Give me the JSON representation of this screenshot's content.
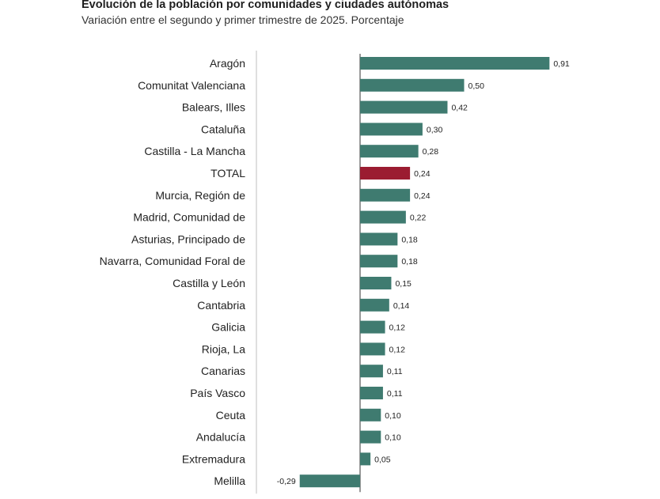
{
  "chart_data": {
    "type": "bar",
    "orientation": "horizontal",
    "title": "Evolución de la población por comunidades y ciudades autónomas",
    "subtitle": "Variación entre el segundo y primer trimestre de 2025. Porcentaje",
    "categories": [
      "Aragón",
      "Comunitat Valenciana",
      "Balears, Illes",
      "Cataluña",
      "Castilla - La Mancha",
      "TOTAL",
      "Murcia, Región de",
      "Madrid, Comunidad de",
      "Asturias, Principado de",
      "Navarra, Comunidad Foral de",
      "Castilla y León",
      "Cantabria",
      "Galicia",
      "Rioja, La",
      "Canarias",
      "País Vasco",
      "Ceuta",
      "Andalucía",
      "Extremadura",
      "Melilla"
    ],
    "values": [
      0.91,
      0.5,
      0.42,
      0.3,
      0.28,
      0.24,
      0.24,
      0.22,
      0.18,
      0.18,
      0.15,
      0.14,
      0.12,
      0.12,
      0.11,
      0.11,
      0.1,
      0.1,
      0.05,
      -0.29
    ],
    "value_labels": [
      "0,91",
      "0,50",
      "0,42",
      "0,30",
      "0,28",
      "0,24",
      "0,24",
      "0,22",
      "0,18",
      "0,18",
      "0,15",
      "0,14",
      "0,12",
      "0,12",
      "0,11",
      "0,11",
      "0,10",
      "0,10",
      "0,05",
      "-0,29"
    ],
    "highlight_category": "TOTAL",
    "xlim": [
      -0.29,
      0.91
    ],
    "grid": false,
    "legend": "none",
    "colors": {
      "bar": "#3f7b70",
      "highlight": "#9b1c31",
      "axis": "#bfbfbf"
    }
  }
}
